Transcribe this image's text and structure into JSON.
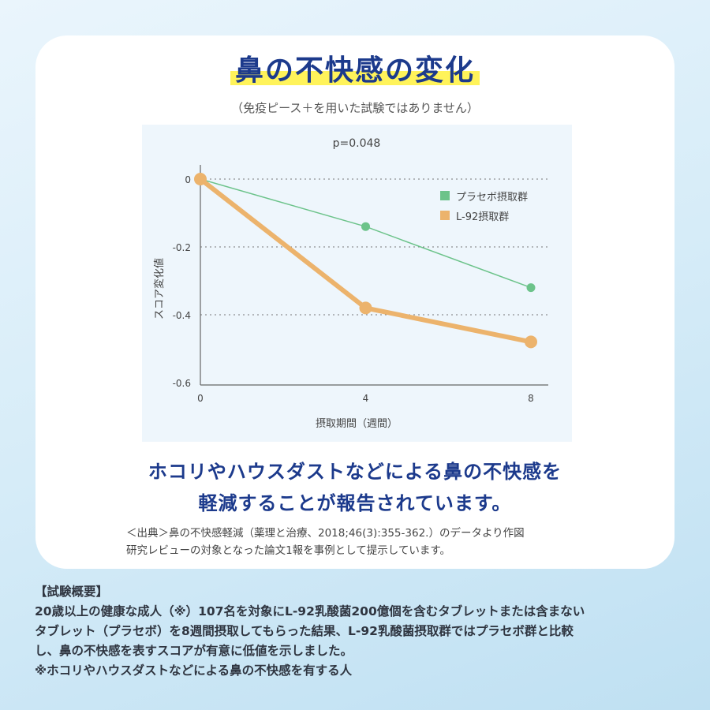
{
  "header": {
    "title": "鼻の不快感の変化",
    "subtitle": "（免疫ピース＋を用いた試験ではありません）"
  },
  "chart_data": {
    "type": "line",
    "annotation": "p=0.048",
    "xlabel": "摂取期間（週間）",
    "ylabel": "スコア変化値",
    "x": [
      0,
      4,
      8
    ],
    "x_ticks": [
      "0",
      "4",
      "8"
    ],
    "y_ticks": [
      "0",
      "-0.2",
      "-0.4",
      "-0.6"
    ],
    "ylim": [
      -0.6,
      0
    ],
    "grid": "horizontal dotted",
    "legend_position": "top-right",
    "series": [
      {
        "name": "プラセボ摂取群",
        "values": [
          0,
          -0.14,
          -0.32
        ],
        "color": "#6cc38a"
      },
      {
        "name": "L-92摂取群",
        "values": [
          0,
          -0.38,
          -0.48
        ],
        "color": "#ecb36c"
      }
    ]
  },
  "message": {
    "line1": "ホコリやハウスダストなどによる鼻の不快感を",
    "line2": "軽減することが報告されています。"
  },
  "source": {
    "line1": "＜出典＞鼻の不快感軽減（薬理と治療、2018;46(3):355-362.）のデータより作図",
    "line2": "研究レビューの対象となった論文1報を事例として提示しています。"
  },
  "summary": {
    "heading": "【試験概要】",
    "lines": [
      "20歳以上の健康な成人（※）107名を対象にL-92乳酸菌200億個を含むタブレットまたは含まない",
      "タブレット（プラセボ）を8週間摂取してもらった結果、L-92乳酸菌摂取群ではプラセボ群と比較",
      "し、鼻の不快感を表すスコアが有意に低値を示しました。",
      "※ホコリやハウスダストなどによる鼻の不快感を有する人"
    ]
  }
}
